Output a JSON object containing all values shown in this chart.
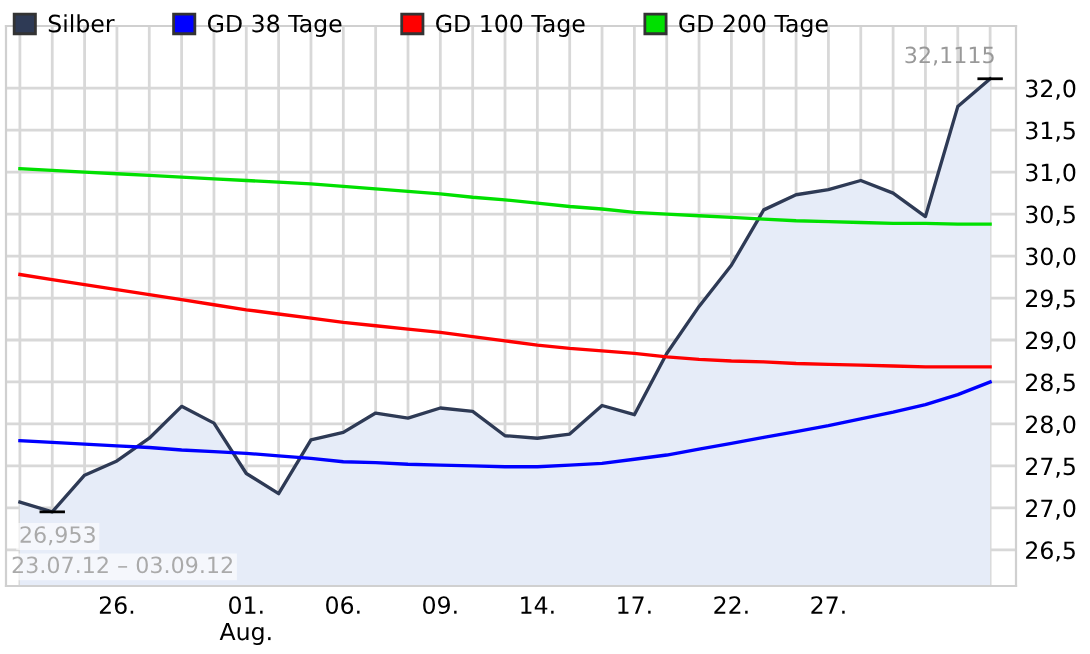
{
  "chart_data": {
    "type": "line",
    "categories": [
      null,
      null,
      null,
      "26.",
      null,
      null,
      null,
      "01.\nAug.",
      null,
      null,
      "06.",
      null,
      null,
      "09.",
      null,
      null,
      "14.",
      null,
      null,
      "17.",
      null,
      null,
      "22.",
      null,
      null,
      "27.",
      null,
      null,
      null,
      null,
      null
    ],
    "series": [
      {
        "name": "Silber",
        "type": "area",
        "color": "#2e3a55",
        "values": [
          27.07,
          26.953,
          27.39,
          27.56,
          27.83,
          28.21,
          28.01,
          27.41,
          27.17,
          27.81,
          27.9,
          28.13,
          28.07,
          28.19,
          28.15,
          27.86,
          27.83,
          27.88,
          28.22,
          28.11,
          28.84,
          29.4,
          29.89,
          30.55,
          30.73,
          30.79,
          30.9,
          30.75,
          30.47,
          31.78,
          32.1115
        ]
      },
      {
        "name": "GD 38 Tage",
        "color": "#0000ff",
        "values": [
          27.8,
          27.78,
          27.76,
          27.74,
          27.72,
          27.69,
          27.67,
          27.65,
          27.62,
          27.59,
          27.55,
          27.54,
          27.52,
          27.51,
          27.5,
          27.49,
          27.49,
          27.51,
          27.53,
          27.58,
          27.63,
          27.7,
          27.77,
          27.84,
          27.91,
          27.98,
          28.06,
          28.14,
          28.23,
          28.35,
          28.5
        ]
      },
      {
        "name": "GD 100 Tage",
        "color": "#ff0000",
        "values": [
          29.78,
          29.72,
          29.66,
          29.6,
          29.54,
          29.48,
          29.42,
          29.36,
          29.31,
          29.26,
          29.21,
          29.17,
          29.13,
          29.09,
          29.04,
          28.99,
          28.94,
          28.9,
          28.87,
          28.84,
          28.8,
          28.77,
          28.75,
          28.74,
          28.72,
          28.71,
          28.7,
          28.69,
          28.68,
          28.68,
          28.68
        ]
      },
      {
        "name": "GD 200 Tage",
        "color": "#00e000",
        "values": [
          31.04,
          31.02,
          31.0,
          30.98,
          30.96,
          30.94,
          30.92,
          30.9,
          30.88,
          30.86,
          30.83,
          30.8,
          30.77,
          30.74,
          30.7,
          30.67,
          30.63,
          30.59,
          30.56,
          30.52,
          30.5,
          30.48,
          30.46,
          30.44,
          30.42,
          30.41,
          30.4,
          30.39,
          30.39,
          30.38,
          30.38
        ]
      }
    ],
    "ylim": [
      26.07,
      32.74
    ],
    "yticks": [
      {
        "value": 26.5,
        "label": "26,5"
      },
      {
        "value": 27.0,
        "label": "27,0"
      },
      {
        "value": 27.5,
        "label": "27,5"
      },
      {
        "value": 28.0,
        "label": "28,0"
      },
      {
        "value": 28.5,
        "label": "28,5"
      },
      {
        "value": 29.0,
        "label": "29,0"
      },
      {
        "value": 29.5,
        "label": "29,5"
      },
      {
        "value": 30.0,
        "label": "30,0"
      },
      {
        "value": 30.5,
        "label": "30,5"
      },
      {
        "value": 31.0,
        "label": "31,0"
      },
      {
        "value": 31.5,
        "label": "31,5"
      },
      {
        "value": 32.0,
        "label": "32,0"
      }
    ],
    "annotations": [
      "32,1115",
      "26,953",
      "23.07.12 – 03.09.12"
    ],
    "grid": true,
    "legend": "top"
  }
}
